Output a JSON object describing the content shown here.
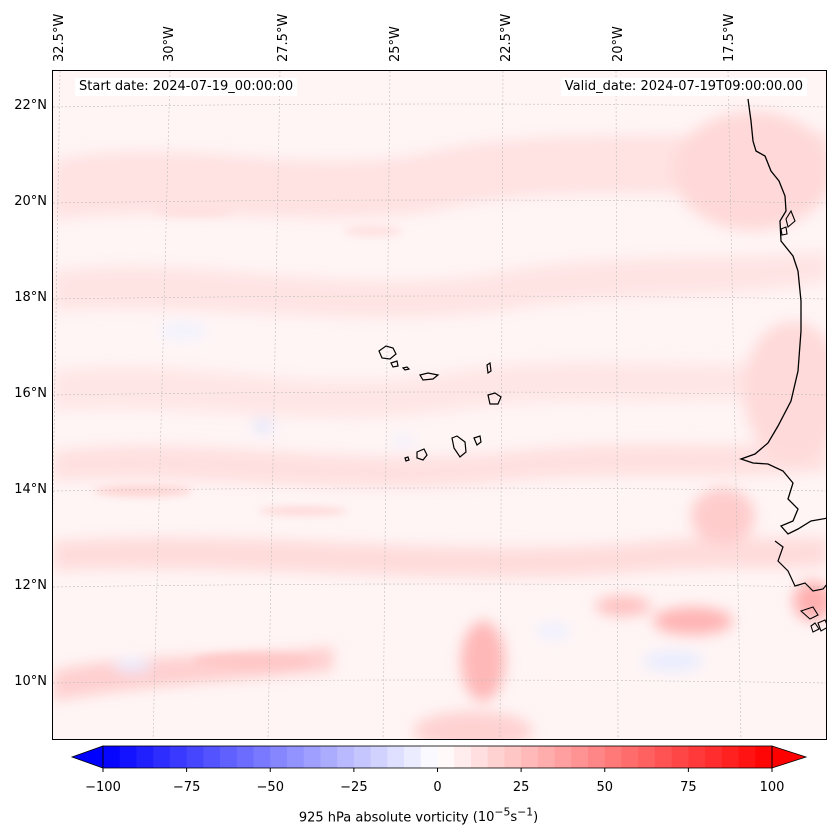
{
  "map": {
    "title_start": "Start date: 2024-07-19_00:00:00",
    "title_valid": "Valid_date: 2024-07-19T09:00:00.00",
    "lon_labels": [
      "32.5°W",
      "30°W",
      "27.5°W",
      "25°W",
      "22.5°W",
      "20°W",
      "17.5°W"
    ],
    "lat_labels": [
      "22°N",
      "20°N",
      "18°N",
      "16°N",
      "14°N",
      "12°N",
      "10°N"
    ],
    "field": "925 hPa absolute vorticity",
    "units_html": "(10<sup>−5</sup>s<sup>−1</sup>)",
    "label_text": "925 hPa absolute vorticity (10−5s−1)",
    "colormap": "bwr",
    "coast_color": "#000000"
  },
  "colorbar": {
    "ticks": [
      "−100",
      "−75",
      "−50",
      "−25",
      "0",
      "25",
      "50",
      "75",
      "100"
    ],
    "tick_values": [
      -100,
      -75,
      -50,
      -25,
      0,
      25,
      50,
      75,
      100
    ],
    "min": -100,
    "max": 100,
    "step": 5,
    "extend": "both"
  }
}
